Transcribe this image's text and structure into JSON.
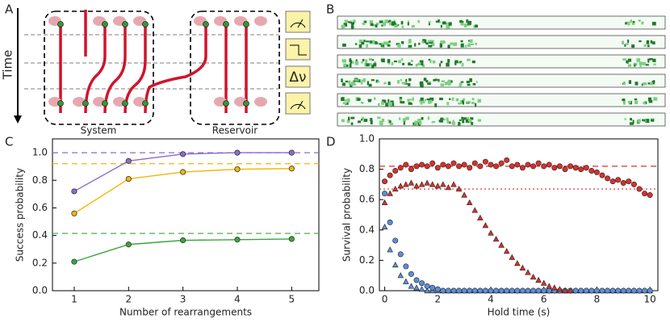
{
  "panel_labels": [
    "A",
    "B",
    "C",
    "D"
  ],
  "diagram": {
    "time_label": "Time",
    "system_label": "System",
    "reservoir_label": "Reservoir",
    "detuning_label": "Δν"
  },
  "chart_data": [
    {
      "type": "line",
      "x_label": "Number of rearrangements",
      "y_label": "Success probability",
      "x": [
        1,
        2,
        3,
        4,
        5
      ],
      "xlim": [
        0.6,
        5.5
      ],
      "ylim": [
        0,
        1.1
      ],
      "xticks": [
        1,
        2,
        3,
        4,
        5
      ],
      "yticks": [
        {
          "value": 0,
          "label": "0.0"
        },
        0.2,
        0.4,
        0.6,
        0.8,
        {
          "value": 1,
          "label": "1.0"
        }
      ],
      "series": [
        {
          "color": "#8a6ccf",
          "values": [
            0.72,
            0.94,
            0.99,
            1.0,
            1.0
          ]
        },
        {
          "color": "#f2b705",
          "values": [
            0.56,
            0.81,
            0.86,
            0.88,
            0.885
          ]
        },
        {
          "color": "#3aa63c",
          "values": [
            0.21,
            0.335,
            0.365,
            0.37,
            0.375
          ]
        }
      ],
      "reference_lines": [
        {
          "value": 1.0,
          "color": "#8a6ccf",
          "style": "dashed"
        },
        {
          "value": 0.92,
          "color": "#f2b705",
          "style": "dashed"
        },
        {
          "value": 0.415,
          "color": "#3aa63c",
          "style": "dashed"
        }
      ]
    },
    {
      "type": "scatter",
      "x_label": "Hold time (s)",
      "y_label": "Survival probability",
      "x": [
        0,
        0.2,
        0.4,
        0.6,
        0.8,
        1.0,
        1.2,
        1.4,
        1.6,
        1.8,
        2.0,
        2.2,
        2.4,
        2.6,
        2.8,
        3.0,
        3.2,
        3.4,
        3.6,
        3.8,
        4.0,
        4.2,
        4.4,
        4.6,
        4.8,
        5.0,
        5.2,
        5.4,
        5.6,
        5.8,
        6.0,
        6.2,
        6.4,
        6.6,
        6.8,
        7.0,
        7.2,
        7.4,
        7.6,
        7.8,
        8.0,
        8.2,
        8.4,
        8.6,
        8.8,
        9.0,
        9.2,
        9.4,
        9.6,
        9.8,
        10.0
      ],
      "xlim": [
        -0.2,
        10.3
      ],
      "ylim": [
        0,
        1.0
      ],
      "xticks": [
        0,
        2,
        4,
        6,
        8,
        10
      ],
      "yticks": [
        {
          "value": 0,
          "label": "0.0"
        },
        0.2,
        0.4,
        0.6,
        0.8,
        {
          "value": 1,
          "label": "1.0"
        }
      ],
      "series": [
        {
          "color": "#d9302c",
          "marker": "circle",
          "values": [
            0.72,
            0.76,
            0.79,
            0.81,
            0.83,
            0.8,
            0.82,
            0.83,
            0.82,
            0.84,
            0.81,
            0.83,
            0.82,
            0.84,
            0.82,
            0.83,
            0.81,
            0.84,
            0.82,
            0.85,
            0.83,
            0.82,
            0.84,
            0.86,
            0.82,
            0.83,
            0.81,
            0.83,
            0.82,
            0.84,
            0.82,
            0.83,
            0.81,
            0.82,
            0.8,
            0.82,
            0.81,
            0.8,
            0.81,
            0.79,
            0.78,
            0.76,
            0.74,
            0.72,
            0.73,
            0.71,
            0.72,
            0.7,
            0.67,
            0.64,
            0.63
          ]
        },
        {
          "color": "#d9302c",
          "marker": "triangle",
          "values": [
            0.58,
            0.64,
            0.67,
            0.69,
            0.7,
            0.71,
            0.69,
            0.7,
            0.71,
            0.7,
            0.69,
            0.7,
            0.68,
            0.7,
            0.67,
            0.63,
            0.58,
            0.53,
            0.48,
            0.43,
            0.38,
            0.34,
            0.3,
            0.26,
            0.22,
            0.18,
            0.15,
            0.12,
            0.09,
            0.07,
            0.05,
            0.03,
            0.02,
            0.01,
            0,
            0,
            null,
            null,
            null,
            null,
            null,
            null,
            null,
            null,
            null,
            null,
            null,
            null,
            null,
            null,
            null
          ]
        },
        {
          "color": "#5b8fd6",
          "marker": "circle",
          "values": [
            0.64,
            0.45,
            0.33,
            0.24,
            0.16,
            0.11,
            0.07,
            0.05,
            0.03,
            0.02,
            0.01,
            0,
            0,
            0,
            0,
            0,
            0,
            0,
            0,
            0,
            0,
            0,
            0,
            0,
            0,
            0,
            0,
            0,
            0,
            0,
            0,
            0,
            0,
            0,
            0,
            0,
            0,
            0,
            0,
            0,
            0,
            0,
            0,
            0,
            0,
            0,
            0,
            0,
            0,
            0,
            0
          ]
        },
        {
          "color": "#5b8fd6",
          "marker": "triangle",
          "values": [
            0.42,
            0.27,
            0.17,
            0.1,
            0.06,
            0.03,
            0.02,
            0.01,
            0,
            0,
            0,
            0,
            0,
            0,
            0,
            0,
            0,
            0,
            0,
            0,
            0,
            0,
            0,
            0,
            0,
            0,
            0,
            0,
            0,
            0,
            0,
            0,
            0,
            0,
            0,
            0,
            0,
            0,
            0,
            0,
            0,
            0,
            0,
            0,
            0,
            0,
            0,
            0,
            0,
            0,
            0
          ]
        }
      ],
      "reference_lines": [
        {
          "value": 0.82,
          "color": "#d9302c",
          "style": "dashed"
        },
        {
          "value": 0.67,
          "color": "#d9302c",
          "style": "dotted"
        }
      ]
    }
  ]
}
